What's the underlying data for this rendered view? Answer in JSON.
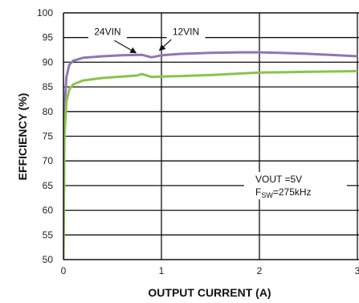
{
  "chart_data": {
    "type": "line",
    "title": "",
    "xlabel": "OUTPUT CURRENT (A)",
    "ylabel": "EFFICIENCY (%)",
    "xlim": [
      0,
      3
    ],
    "ylim": [
      50,
      100
    ],
    "x_ticks": [
      0,
      1,
      2,
      3
    ],
    "y_ticks": [
      50,
      55,
      60,
      65,
      70,
      75,
      80,
      85,
      90,
      95,
      100
    ],
    "grid": true,
    "series": [
      {
        "name": "12VIN",
        "color": "#8e76b8",
        "x": [
          0.0,
          0.01,
          0.03,
          0.06,
          0.1,
          0.2,
          0.4,
          0.6,
          0.8,
          0.9,
          1.0,
          1.2,
          1.5,
          1.8,
          2.0,
          2.2,
          2.5,
          2.8,
          3.0
        ],
        "y": [
          50,
          80,
          87,
          89.5,
          90.3,
          90.9,
          91.2,
          91.4,
          91.5,
          91.0,
          91.4,
          91.7,
          91.9,
          92.0,
          92.0,
          91.9,
          91.7,
          91.4,
          91.2
        ]
      },
      {
        "name": "24VIN",
        "color": "#8bc34a",
        "x": [
          0.0,
          0.01,
          0.03,
          0.06,
          0.1,
          0.2,
          0.4,
          0.6,
          0.75,
          0.8,
          0.9,
          1.0,
          1.2,
          1.5,
          1.8,
          2.0,
          2.3,
          2.6,
          3.0
        ],
        "y": [
          50,
          75,
          82,
          84.5,
          85.5,
          86.3,
          86.8,
          87.1,
          87.3,
          87.6,
          87.0,
          87.1,
          87.2,
          87.4,
          87.7,
          87.9,
          88.0,
          88.1,
          88.2
        ]
      }
    ],
    "annotations": [
      {
        "text": "24VIN",
        "x": 0.45,
        "y": 95.5
      },
      {
        "text": "12VIN",
        "x": 1.25,
        "y": 95.5
      }
    ],
    "conditions": {
      "vout_label": "VOUT =5V",
      "fsw_main": "F",
      "fsw_sub": "SW",
      "fsw_rest": "=275kHz"
    }
  }
}
